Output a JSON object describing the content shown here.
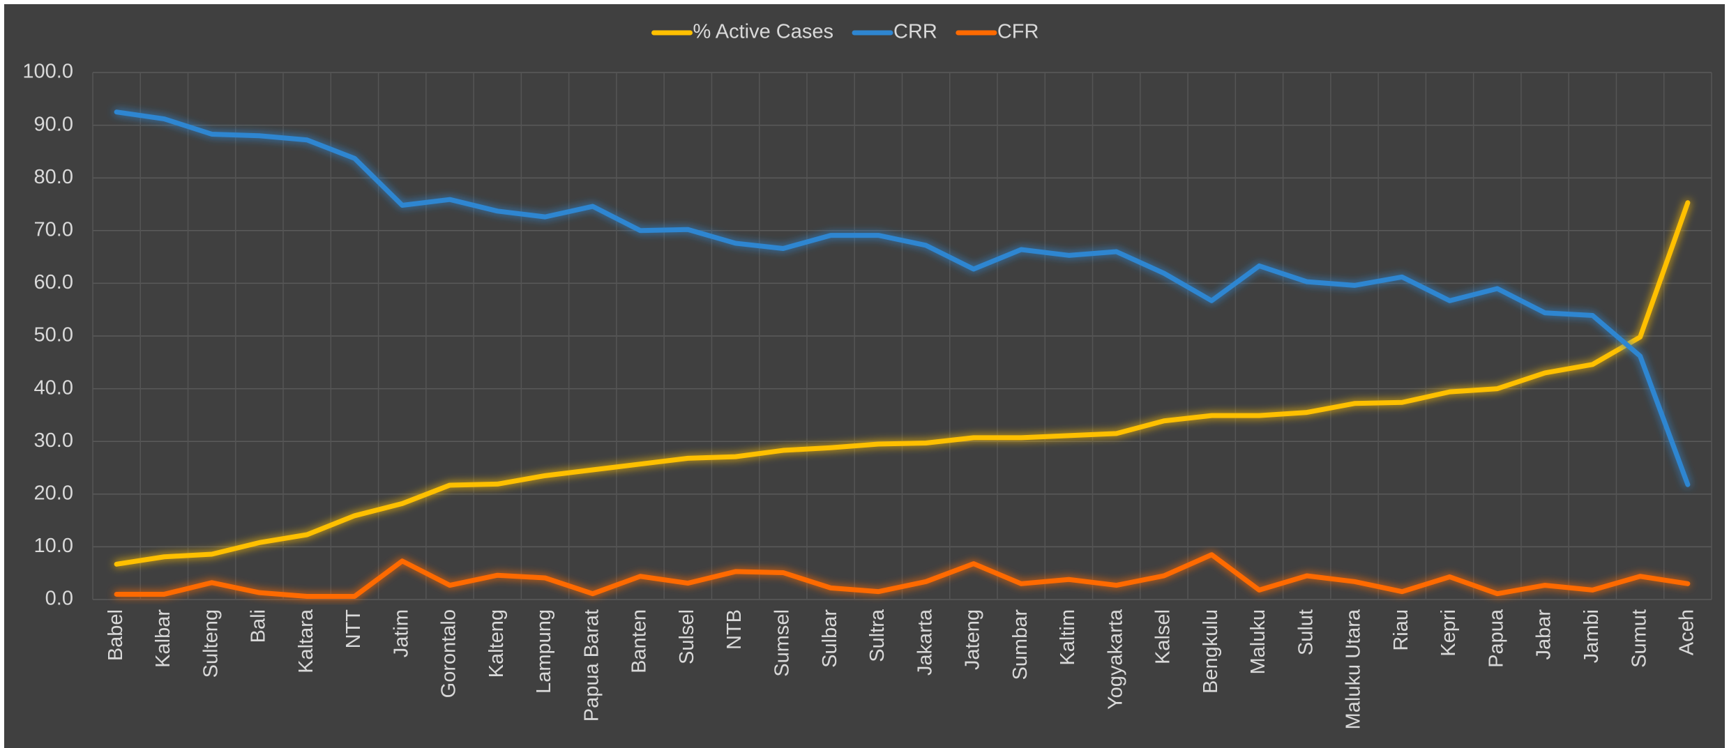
{
  "chart_data": {
    "type": "line",
    "categories": [
      "Babel",
      "Kalbar",
      "Sulteng",
      "Bali",
      "Kaltara",
      "NTT",
      "Jatim",
      "Gorontalo",
      "Kalteng",
      "Lampung",
      "Papua Barat",
      "Banten",
      "Sulsel",
      "NTB",
      "Sumsel",
      "Sulbar",
      "Sultra",
      "Jakarta",
      "Jateng",
      "Sumbar",
      "Kaltim",
      "Yogyakarta",
      "Kalsel",
      "Bengkulu",
      "Maluku",
      "Sulut",
      "Maluku Utara",
      "Riau",
      "Kepri",
      "Papua",
      "Jabar",
      "Jambi",
      "Sumut",
      "Aceh"
    ],
    "series": [
      {
        "name": "% Active Cases",
        "color": "#FFC000",
        "values": [
          6.7,
          8.1,
          8.6,
          10.8,
          12.3,
          15.9,
          18.2,
          21.7,
          21.9,
          23.5,
          24.6,
          25.7,
          26.8,
          27.1,
          28.3,
          28.8,
          29.5,
          29.7,
          30.7,
          30.7,
          31.1,
          31.5,
          33.9,
          34.9,
          34.9,
          35.5,
          37.2,
          37.4,
          39.4,
          40.0,
          43.0,
          44.6,
          49.8,
          75.3
        ]
      },
      {
        "name": "CRR",
        "color": "#2E86D1",
        "values": [
          92.5,
          91.2,
          88.3,
          88.0,
          87.2,
          83.7,
          74.8,
          75.9,
          73.7,
          72.6,
          74.6,
          70.0,
          70.2,
          67.6,
          66.6,
          69.1,
          69.1,
          67.2,
          62.7,
          66.4,
          65.3,
          66.0,
          61.9,
          56.7,
          63.3,
          60.3,
          59.6,
          61.2,
          56.7,
          59.0,
          54.4,
          53.9,
          46.2,
          21.8
        ]
      },
      {
        "name": "CFR",
        "color": "#FF6A00",
        "values": [
          1.0,
          1.0,
          3.2,
          1.3,
          0.6,
          0.6,
          7.3,
          2.7,
          4.6,
          4.1,
          1.1,
          4.4,
          3.1,
          5.3,
          5.1,
          2.2,
          1.5,
          3.4,
          6.8,
          3.0,
          3.8,
          2.7,
          4.5,
          8.5,
          1.8,
          4.5,
          3.4,
          1.5,
          4.3,
          1.1,
          2.7,
          1.8,
          4.4,
          3.0
        ]
      }
    ],
    "ylim": [
      0,
      100
    ],
    "yticks": [
      {
        "value": 0,
        "label": "0.0"
      },
      {
        "value": 10,
        "label": "10.0"
      },
      {
        "value": 20,
        "label": "20.0"
      },
      {
        "value": 30,
        "label": "30.0"
      },
      {
        "value": 40,
        "label": "40.0"
      },
      {
        "value": 50,
        "label": "50.0"
      },
      {
        "value": 60,
        "label": "60.0"
      },
      {
        "value": 70,
        "label": "70.0"
      },
      {
        "value": 80,
        "label": "80.0"
      },
      {
        "value": 90,
        "label": "90.0"
      },
      {
        "value": 100,
        "label": "100.0"
      }
    ],
    "grid": true,
    "legend": "top"
  }
}
